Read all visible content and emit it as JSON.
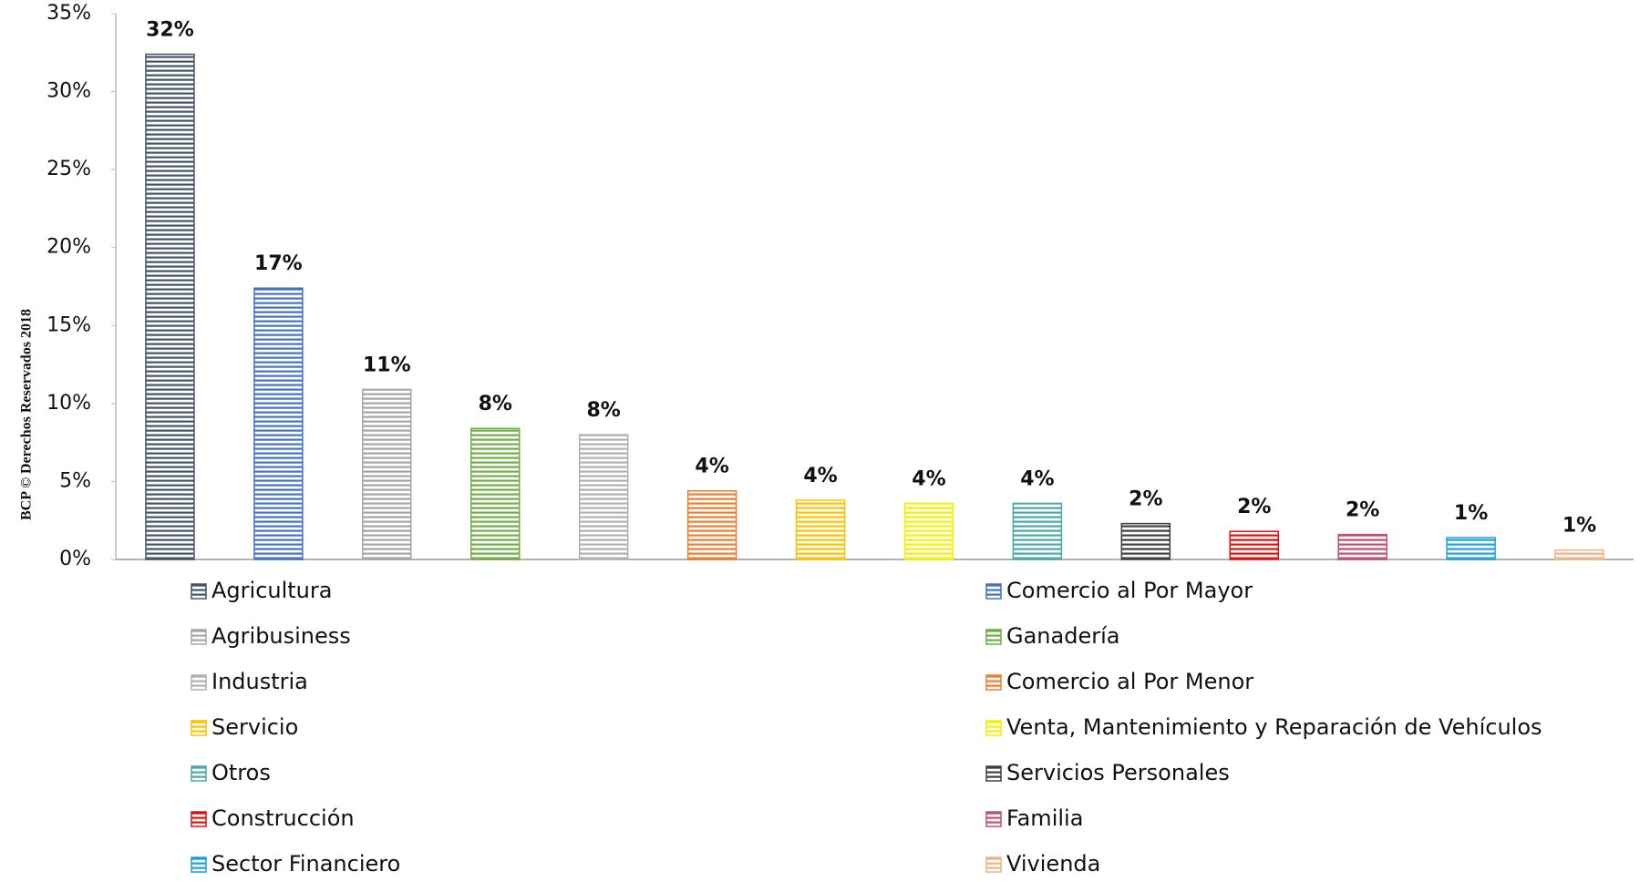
{
  "chart_data": {
    "type": "bar",
    "y_label": "BCP © Derechos Reservados 2018",
    "categories": [
      "Agricultura",
      "Comercio al Por Mayor",
      "Agribusiness",
      "Ganadería",
      "Industria",
      "Comercio al Por Menor",
      "Servicio",
      "Venta, Mantenimiento y Reparación de Vehículos",
      "Otros",
      "Servicios Personales",
      "Construcción",
      "Familia",
      "Sector Financiero",
      "Vivienda"
    ],
    "values": [
      32.4,
      17.4,
      10.9,
      8.4,
      8.0,
      4.4,
      3.8,
      3.6,
      3.6,
      2.3,
      1.8,
      1.6,
      1.4,
      0.6
    ],
    "value_labels": [
      "32%",
      "17%",
      "11%",
      "8%",
      "8%",
      "4%",
      "4%",
      "4%",
      "4%",
      "2%",
      "2%",
      "2%",
      "1%",
      "1%"
    ],
    "colors": [
      "#44546a",
      "#4472c4",
      "#a5a5a5",
      "#70ad47",
      "#b0b0b0",
      "#ed7d31",
      "#ffc000",
      "#f2f200",
      "#4aa8a8",
      "#404040",
      "#e01010",
      "#c0506e",
      "#1fa0e0",
      "#f4b183"
    ],
    "ylim": [
      0,
      35
    ],
    "yticks": [
      {
        "value": 0,
        "label": "0%"
      },
      {
        "value": 5,
        "label": "5%"
      },
      {
        "value": 10,
        "label": "10%"
      },
      {
        "value": 15,
        "label": "15%"
      },
      {
        "value": 20,
        "label": "20%"
      },
      {
        "value": 25,
        "label": "25%"
      },
      {
        "value": 30,
        "label": "30%"
      },
      {
        "value": 35,
        "label": "35%"
      }
    ],
    "grid": false
  }
}
